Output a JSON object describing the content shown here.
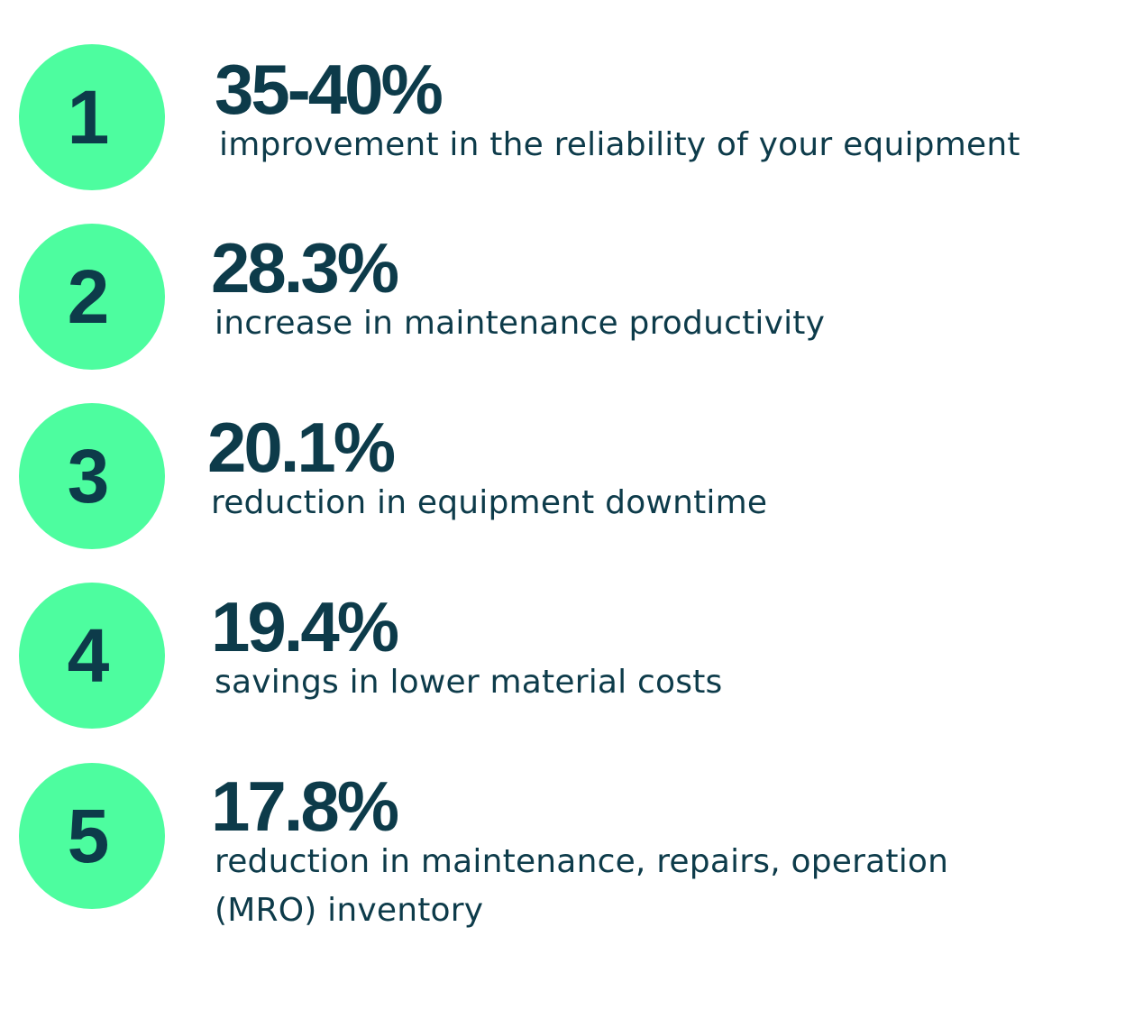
{
  "colors": {
    "circle": "#4dfd9f",
    "text": "#0d3b4a",
    "background": "#ffffff"
  },
  "stats": [
    {
      "number": "1",
      "value": "35-40%",
      "description": [
        "improvement in the reliability of your equipment"
      ]
    },
    {
      "number": "2",
      "value": "28.3%",
      "description": [
        "increase in maintenance productivity"
      ]
    },
    {
      "number": "3",
      "value": "20.1%",
      "description": [
        "reduction in equipment downtime"
      ]
    },
    {
      "number": "4",
      "value": "19.4%",
      "description": [
        "savings in lower material costs"
      ]
    },
    {
      "number": "5",
      "value": "17.8%",
      "description": [
        "reduction in maintenance, repairs, operation",
        "(MRO) inventory"
      ]
    }
  ]
}
